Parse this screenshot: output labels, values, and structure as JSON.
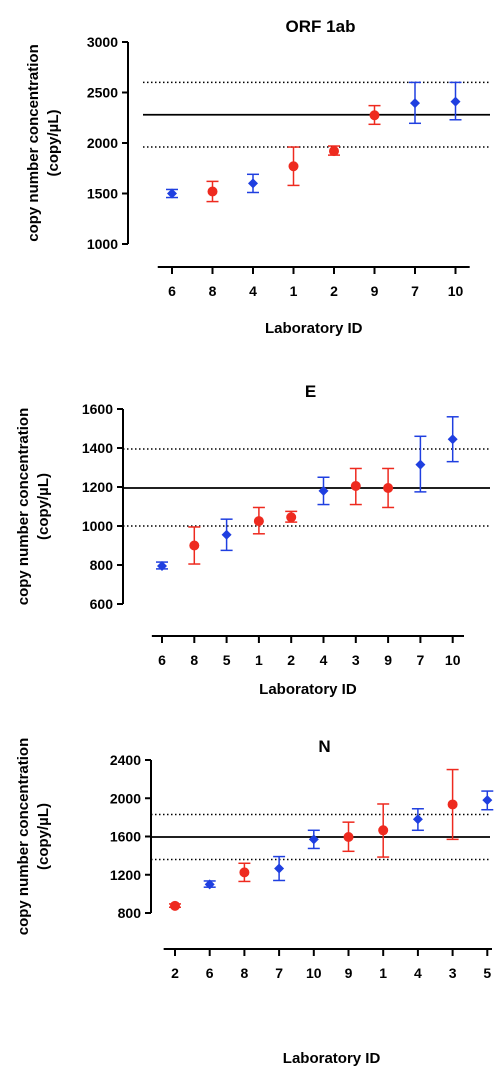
{
  "ylabel_line1": "copy number concentration",
  "ylabel_line2": "(copy/µL)",
  "colors": {
    "blue": "#1f3fe0",
    "red": "#ee2a1f",
    "ink": "#000000"
  },
  "chart_data": [
    {
      "type": "scatter",
      "title": "ORF 1ab",
      "xlabel": "Laboratory ID",
      "ylim": [
        1000,
        3000
      ],
      "yticks": [
        "1000",
        "1500",
        "2000",
        "2500",
        "3000"
      ],
      "reference_line": 2280,
      "limits": [
        1960,
        2600
      ],
      "categories": [
        "6",
        "8",
        "4",
        "1",
        "2",
        "9",
        "7",
        "10"
      ],
      "values": [
        1500,
        1520,
        1600,
        1770,
        1920,
        2275,
        2395,
        2410
      ],
      "err_low": [
        1460,
        1420,
        1510,
        1580,
        1880,
        2185,
        2195,
        2230
      ],
      "err_high": [
        1540,
        1620,
        1690,
        1960,
        1970,
        2370,
        2600,
        2600
      ],
      "markers": [
        "diamond",
        "circle",
        "diamond",
        "circle",
        "circle",
        "circle",
        "diamond",
        "diamond"
      ],
      "grid": false
    },
    {
      "type": "scatter",
      "title": "E",
      "xlabel": "Laboratory ID",
      "ylim": [
        600,
        1600
      ],
      "yticks": [
        "600",
        "800",
        "1000",
        "1200",
        "1400",
        "1600"
      ],
      "reference_line": 1195,
      "limits": [
        1000,
        1395
      ],
      "categories": [
        "6",
        "8",
        "5",
        "1",
        "2",
        "4",
        "3",
        "9",
        "7",
        "10"
      ],
      "values": [
        795,
        900,
        955,
        1025,
        1045,
        1180,
        1205,
        1195,
        1315,
        1445
      ],
      "err_low": [
        780,
        805,
        875,
        960,
        1020,
        1110,
        1110,
        1095,
        1175,
        1330
      ],
      "err_high": [
        815,
        995,
        1035,
        1095,
        1075,
        1250,
        1295,
        1295,
        1460,
        1560
      ],
      "markers": [
        "diamond",
        "circle",
        "diamond",
        "circle",
        "circle",
        "diamond",
        "circle",
        "circle",
        "diamond",
        "diamond"
      ],
      "grid": false
    },
    {
      "type": "scatter",
      "title": "N",
      "xlabel": "Laboratory ID",
      "ylim": [
        800,
        2400
      ],
      "yticks": [
        "800",
        "1200",
        "1600",
        "2000",
        "2400"
      ],
      "reference_line": 1595,
      "limits": [
        1360,
        1830
      ],
      "categories": [
        "2",
        "6",
        "8",
        "7",
        "10",
        "9",
        "1",
        "4",
        "3",
        "5"
      ],
      "values": [
        875,
        1100,
        1225,
        1265,
        1570,
        1595,
        1665,
        1780,
        1935,
        1980
      ],
      "err_low": [
        860,
        1070,
        1130,
        1140,
        1475,
        1445,
        1385,
        1665,
        1570,
        1880
      ],
      "err_high": [
        895,
        1135,
        1320,
        1390,
        1665,
        1750,
        1940,
        1890,
        2300,
        2075
      ],
      "markers": [
        "circle",
        "diamond",
        "circle",
        "diamond",
        "diamond",
        "circle",
        "circle",
        "diamond",
        "circle",
        "diamond"
      ],
      "grid": false
    }
  ]
}
